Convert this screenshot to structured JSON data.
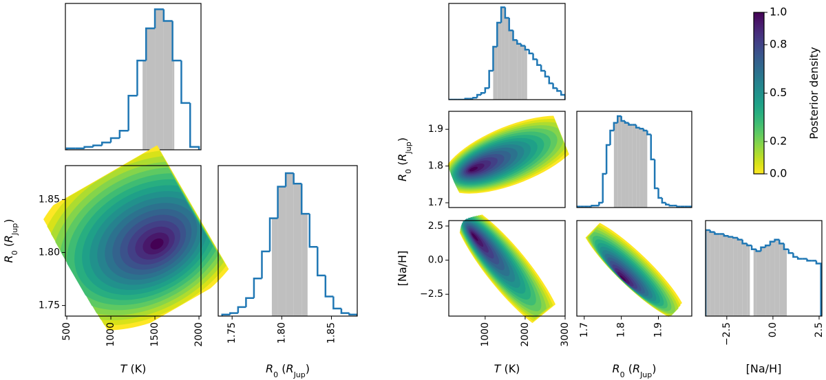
{
  "chart_data": [
    {
      "type": "histogram",
      "color": "#1f77b4",
      "fill": "#bfbfbf",
      "bins": [
        500,
        600,
        700,
        800,
        900,
        1000,
        1100,
        1200,
        1300,
        1400,
        1500,
        1600,
        1700,
        1800,
        1900,
        2000
      ],
      "counts": [
        0.01,
        0.01,
        0.02,
        0.03,
        0.05,
        0.08,
        0.13,
        0.37,
        0.61,
        0.83,
        0.96,
        0.88,
        0.61,
        0.32,
        0.02
      ],
      "credible_intervals": [
        [
          1360,
          1720
        ]
      ],
      "xlim": [
        484,
        2023
      ],
      "ylim": [
        0,
        1
      ]
    },
    {
      "type": "contour",
      "xlim": [
        484,
        2023
      ],
      "ylim": [
        1.74,
        1.882
      ],
      "xticks": [
        500,
        1000,
        1500,
        2000
      ],
      "yticks": [
        1.75,
        {
          "value": 1.8,
          "label": "1.80"
        },
        1.85
      ],
      "xlabel": [
        {
          "t": "T",
          "style": "italic"
        },
        {
          "t": " (K)"
        }
      ],
      "ylabel": [
        {
          "t": "R",
          "style": "italic"
        },
        {
          "t": "0",
          "style": "sub"
        },
        {
          "t": " ("
        },
        {
          "t": "R",
          "style": "italic"
        },
        {
          "t": "Jup",
          "style": "sub"
        },
        {
          "t": ")"
        }
      ]
    },
    {
      "type": "histogram",
      "color": "#1f77b4",
      "fill": "#bfbfbf",
      "bins": [
        1.74,
        1.748,
        1.756,
        1.764,
        1.772,
        1.78,
        1.788,
        1.796,
        1.804,
        1.812,
        1.82,
        1.828,
        1.836,
        1.844,
        1.852,
        1.86,
        1.868,
        1.876
      ],
      "counts": [
        0.01,
        0.02,
        0.06,
        0.12,
        0.25,
        0.43,
        0.65,
        0.86,
        0.95,
        0.88,
        0.68,
        0.46,
        0.27,
        0.13,
        0.05,
        0.02,
        0.01
      ],
      "credible_intervals": [
        [
          1.79,
          1.826
        ]
      ],
      "xlim": [
        1.736,
        1.876
      ],
      "ylim": [
        0,
        1
      ],
      "xticks": [
        1.75,
        {
          "value": 1.8,
          "label": "1.80"
        },
        1.85
      ],
      "xlabel": [
        {
          "t": "R",
          "style": "italic"
        },
        {
          "t": "0",
          "style": "sub"
        },
        {
          "t": " ("
        },
        {
          "t": "R",
          "style": "italic"
        },
        {
          "t": "Jup",
          "style": "sub"
        },
        {
          "t": ")"
        }
      ]
    },
    {
      "type": "histogram",
      "color": "#1f77b4",
      "fill": "#bfbfbf",
      "bins": [
        100,
        200,
        300,
        400,
        500,
        600,
        700,
        800,
        900,
        1000,
        1100,
        1200,
        1300,
        1400,
        1500,
        1600,
        1700,
        1800,
        1900,
        2000,
        2100,
        2200,
        2300,
        2400,
        2500,
        2600,
        2700,
        2800,
        2900,
        3000
      ],
      "counts": [
        0,
        0,
        0,
        0,
        0.01,
        0.01,
        0.02,
        0.05,
        0.07,
        0.12,
        0.3,
        0.55,
        0.8,
        0.96,
        0.85,
        0.72,
        0.62,
        0.58,
        0.56,
        0.52,
        0.48,
        0.42,
        0.36,
        0.3,
        0.24,
        0.17,
        0.12,
        0.09,
        0.05
      ],
      "credible_intervals": [
        [
          1200,
          2050
        ]
      ],
      "xlim": [
        90,
        3000
      ],
      "ylim": [
        0,
        1
      ]
    },
    {
      "type": "contour",
      "xlim": [
        90,
        3000
      ],
      "ylim": [
        1.687,
        1.949
      ],
      "yticks": [
        1.7,
        1.8,
        1.9
      ],
      "ylabel": [
        {
          "t": "R",
          "style": "italic"
        },
        {
          "t": "0",
          "style": "sub"
        },
        {
          "t": " ("
        },
        {
          "t": "R",
          "style": "italic"
        },
        {
          "t": "Jup",
          "style": "sub"
        },
        {
          "t": ")"
        }
      ]
    },
    {
      "type": "histogram",
      "color": "#1f77b4",
      "fill": "#bfbfbf",
      "bins": [
        1.68,
        1.69,
        1.7,
        1.71,
        1.72,
        1.73,
        1.74,
        1.75,
        1.76,
        1.77,
        1.78,
        1.79,
        1.8,
        1.81,
        1.82,
        1.83,
        1.84,
        1.85,
        1.86,
        1.87,
        1.88,
        1.89,
        1.9,
        1.91,
        1.92,
        1.93,
        1.94,
        1.95,
        1.96,
        1.97,
        1.98,
        1.99
      ],
      "counts": [
        0.01,
        0.01,
        0.01,
        0.01,
        0.02,
        0.02,
        0.05,
        0.35,
        0.65,
        0.8,
        0.88,
        0.95,
        0.9,
        0.88,
        0.86,
        0.86,
        0.83,
        0.82,
        0.8,
        0.76,
        0.5,
        0.2,
        0.1,
        0.05,
        0.03,
        0.02,
        0.02,
        0.01,
        0.01,
        0.01,
        0.01
      ],
      "credible_intervals": [
        [
          1.78,
          1.87
        ]
      ],
      "xlim": [
        1.68,
        1.99
      ],
      "ylim": [
        0,
        1
      ]
    },
    {
      "type": "contour",
      "xlim": [
        90,
        3000
      ],
      "ylim": [
        -4.1,
        2.9
      ],
      "xticks": [
        1000,
        2000,
        3000
      ],
      "yticks": [
        2.5,
        {
          "value": 0,
          "label": "0.0"
        },
        {
          "value": -2.5,
          "label": "−2.5"
        }
      ],
      "xlabel": [
        {
          "t": "T",
          "style": "italic"
        },
        {
          "t": " (K)"
        }
      ],
      "ylabel": [
        {
          "t": "[Na/H]"
        }
      ]
    },
    {
      "type": "contour",
      "xlim": [
        1.68,
        1.99
      ],
      "ylim": [
        -4.1,
        2.9
      ],
      "xticks": [
        1.7,
        1.8,
        1.9
      ],
      "xlabel": [
        {
          "t": "R",
          "style": "italic"
        },
        {
          "t": "0",
          "style": "sub"
        },
        {
          "t": " ("
        },
        {
          "t": "R",
          "style": "italic"
        },
        {
          "t": "Jup",
          "style": "sub"
        },
        {
          "t": ")"
        }
      ]
    },
    {
      "type": "histogram",
      "color": "#1f77b4",
      "fill": "#bfbfbf",
      "bins": [
        -3.65,
        -3.4,
        -3.15,
        -2.9,
        -2.65,
        -2.4,
        -2.15,
        -1.9,
        -1.65,
        -1.4,
        -1.15,
        -0.9,
        -0.65,
        -0.4,
        -0.15,
        0.1,
        0.35,
        0.6,
        0.85,
        1.1,
        1.35,
        1.6,
        1.85,
        2.1,
        2.35,
        2.6
      ],
      "counts": [
        0.9,
        0.88,
        0.86,
        0.86,
        0.84,
        0.83,
        0.82,
        0.8,
        0.76,
        0.74,
        0.7,
        0.68,
        0.72,
        0.74,
        0.78,
        0.8,
        0.76,
        0.7,
        0.66,
        0.62,
        0.6,
        0.6,
        0.58,
        0.58,
        0.55
      ],
      "credible_intervals": [
        [
          -3.65,
          -1.25
        ],
        [
          -1.05,
          0.75
        ]
      ],
      "xlim": [
        -3.65,
        2.65
      ],
      "ylim": [
        0,
        1
      ],
      "xticks": [
        {
          "value": -2.5,
          "label": "−2.5"
        },
        {
          "value": 0,
          "label": "0.0"
        },
        2.5
      ],
      "xlabel": [
        {
          "t": "[Na/H]"
        }
      ]
    },
    {
      "type": "colorbar",
      "ylim": [
        0,
        1
      ],
      "yticks": [
        {
          "value": 0,
          "label": "0.0"
        },
        0.2,
        0.5,
        0.8,
        {
          "value": 1,
          "label": "1.0"
        }
      ],
      "ylabel": [
        {
          "t": "Posterior density"
        }
      ]
    }
  ]
}
